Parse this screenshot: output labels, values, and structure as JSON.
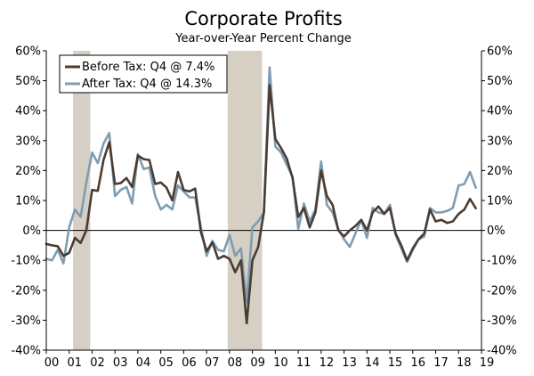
{
  "chart_data": {
    "type": "line",
    "title": "Corporate Profits",
    "subtitle": "Year-over-Year Percent Change",
    "xlabel": "",
    "ylabel": "",
    "xlim": [
      2000.0,
      2019.0
    ],
    "ylim": [
      -40,
      60
    ],
    "x_ticks": [
      {
        "value": 2000,
        "label": "00"
      },
      {
        "value": 2001,
        "label": "01"
      },
      {
        "value": 2002,
        "label": "02"
      },
      {
        "value": 2003,
        "label": "03"
      },
      {
        "value": 2004,
        "label": "04"
      },
      {
        "value": 2005,
        "label": "05"
      },
      {
        "value": 2006,
        "label": "06"
      },
      {
        "value": 2007,
        "label": "07"
      },
      {
        "value": 2008,
        "label": "08"
      },
      {
        "value": 2009,
        "label": "09"
      },
      {
        "value": 2010,
        "label": "10"
      },
      {
        "value": 2011,
        "label": "11"
      },
      {
        "value": 2012,
        "label": "12"
      },
      {
        "value": 2013,
        "label": "13"
      },
      {
        "value": 2014,
        "label": "14"
      },
      {
        "value": 2015,
        "label": "15"
      },
      {
        "value": 2016,
        "label": "16"
      },
      {
        "value": 2017,
        "label": "17"
      },
      {
        "value": 2018,
        "label": "18"
      },
      {
        "value": 2019,
        "label": "19"
      }
    ],
    "y_ticks": [
      {
        "value": 60,
        "label": "60%"
      },
      {
        "value": 50,
        "label": "50%"
      },
      {
        "value": 40,
        "label": "40%"
      },
      {
        "value": 30,
        "label": "30%"
      },
      {
        "value": 20,
        "label": "20%"
      },
      {
        "value": 10,
        "label": "10%"
      },
      {
        "value": 0,
        "label": "0%"
      },
      {
        "value": -10,
        "label": "-10%"
      },
      {
        "value": -20,
        "label": "-20%"
      },
      {
        "value": -30,
        "label": "-30%"
      },
      {
        "value": -40,
        "label": "-40%"
      }
    ],
    "recessions": [
      [
        2001.17,
        2001.92
      ],
      [
        2007.92,
        2009.42
      ]
    ],
    "legend_position": "top-left",
    "series": [
      {
        "name": "Before Tax: Q4 @ 7.4%",
        "color": "#4a3c32",
        "x": [
          2000.0,
          2000.25,
          2000.5,
          2000.75,
          2001.0,
          2001.25,
          2001.5,
          2001.75,
          2002.0,
          2002.25,
          2002.5,
          2002.75,
          2003.0,
          2003.25,
          2003.5,
          2003.75,
          2004.0,
          2004.25,
          2004.5,
          2004.75,
          2005.0,
          2005.25,
          2005.5,
          2005.75,
          2006.0,
          2006.25,
          2006.5,
          2006.75,
          2007.0,
          2007.25,
          2007.5,
          2007.75,
          2008.0,
          2008.25,
          2008.5,
          2008.75,
          2009.0,
          2009.25,
          2009.5,
          2009.75,
          2010.0,
          2010.25,
          2010.5,
          2010.75,
          2011.0,
          2011.25,
          2011.5,
          2011.75,
          2012.0,
          2012.25,
          2012.5,
          2012.75,
          2013.0,
          2013.25,
          2013.5,
          2013.75,
          2014.0,
          2014.25,
          2014.5,
          2014.75,
          2015.0,
          2015.25,
          2015.5,
          2015.75,
          2016.0,
          2016.25,
          2016.5,
          2016.75,
          2017.0,
          2017.25,
          2017.5,
          2017.75,
          2018.0,
          2018.25,
          2018.5,
          2018.75
        ],
        "y": [
          -4.5,
          -5,
          -5.3,
          -8.5,
          -7.5,
          -2.5,
          -4.2,
          0,
          13.5,
          13.2,
          23.5,
          29.5,
          15.5,
          15.8,
          17.5,
          14.5,
          25,
          23.8,
          23.5,
          15.5,
          16,
          14.3,
          10,
          19.5,
          13.5,
          13,
          14,
          -0.5,
          -7,
          -4,
          -9.5,
          -8.5,
          -9.5,
          -14,
          -10,
          -31,
          -10,
          -5.5,
          6,
          48.5,
          30.5,
          27.5,
          24,
          17.5,
          4.5,
          7.5,
          1,
          6,
          20,
          11.5,
          8.5,
          0,
          -2,
          0,
          1.5,
          3.5,
          0,
          6,
          8,
          5.5,
          7.5,
          -1,
          -5,
          -10,
          -6,
          -3,
          -1,
          7,
          3,
          3.5,
          2.5,
          3,
          5.5,
          7,
          10.5,
          7.4
        ]
      },
      {
        "name": "After Tax: Q4 @ 14.3%",
        "color": "#7f9cb1",
        "x": [
          2000.0,
          2000.25,
          2000.5,
          2000.75,
          2001.0,
          2001.25,
          2001.5,
          2001.75,
          2002.0,
          2002.25,
          2002.5,
          2002.75,
          2003.0,
          2003.25,
          2003.5,
          2003.75,
          2004.0,
          2004.25,
          2004.5,
          2004.75,
          2005.0,
          2005.25,
          2005.5,
          2005.75,
          2006.0,
          2006.25,
          2006.5,
          2006.75,
          2007.0,
          2007.25,
          2007.5,
          2007.75,
          2008.0,
          2008.25,
          2008.5,
          2008.75,
          2009.0,
          2009.25,
          2009.5,
          2009.75,
          2010.0,
          2010.25,
          2010.5,
          2010.75,
          2011.0,
          2011.25,
          2011.5,
          2011.75,
          2012.0,
          2012.25,
          2012.5,
          2012.75,
          2013.0,
          2013.25,
          2013.5,
          2013.75,
          2014.0,
          2014.25,
          2014.5,
          2014.75,
          2015.0,
          2015.25,
          2015.5,
          2015.75,
          2016.0,
          2016.25,
          2016.5,
          2016.75,
          2017.0,
          2017.25,
          2017.5,
          2017.75,
          2018.0,
          2018.25,
          2018.5,
          2018.75
        ],
        "y": [
          -9.5,
          -10,
          -6.5,
          -11,
          1,
          7,
          4.5,
          16,
          26,
          22.5,
          29,
          32.5,
          11.5,
          13.5,
          14.5,
          9,
          25.5,
          20.5,
          21,
          11.5,
          7,
          8.5,
          7,
          15,
          13,
          11,
          11,
          1,
          -8.5,
          -3.5,
          -6.5,
          -7,
          -1.5,
          -8.5,
          -6,
          -24,
          1,
          3,
          6,
          54.5,
          28,
          26,
          22,
          18,
          0.5,
          9,
          3,
          7,
          23,
          8.5,
          6,
          0.5,
          -3,
          -5.5,
          -1,
          3.5,
          -2.5,
          7.5,
          6,
          5.5,
          8.5,
          -1.5,
          -6,
          -10.5,
          -6.5,
          -3,
          -2,
          7.5,
          6,
          6,
          6.5,
          7.5,
          15,
          15.5,
          19.5,
          14.3
        ]
      }
    ]
  }
}
